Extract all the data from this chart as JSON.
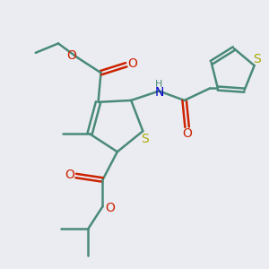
{
  "bg_color": "#eaecf2",
  "bond_color": "#4a8a78",
  "oxygen_color": "#cc2200",
  "nitrogen_color": "#0000cc",
  "sulfur_color": "#aaaa00",
  "line_width": 1.8,
  "fig_size": [
    3.0,
    3.0
  ],
  "dpi": 100,
  "xlim": [
    0,
    10
  ],
  "ylim": [
    0,
    10
  ]
}
